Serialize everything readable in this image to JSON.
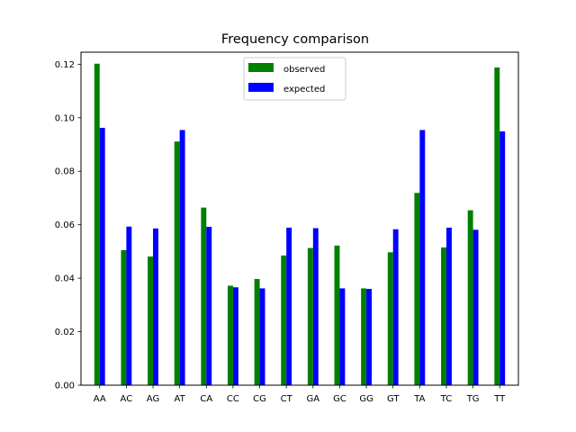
{
  "chart_data": {
    "type": "bar",
    "title": "Frequency comparison",
    "xlabel": "",
    "ylabel": "",
    "categories": [
      "AA",
      "AC",
      "AG",
      "AT",
      "CA",
      "CC",
      "CG",
      "CT",
      "GA",
      "GC",
      "GG",
      "GT",
      "TA",
      "TC",
      "TG",
      "TT"
    ],
    "series": [
      {
        "name": "observed",
        "color": "#008000",
        "values": [
          0.1202,
          0.0505,
          0.0481,
          0.0911,
          0.0664,
          0.0372,
          0.0397,
          0.0485,
          0.0513,
          0.0522,
          0.0362,
          0.0497,
          0.0719,
          0.0515,
          0.0654,
          0.1188
        ]
      },
      {
        "name": "expected",
        "color": "#0000ff",
        "values": [
          0.0962,
          0.0593,
          0.0586,
          0.0954,
          0.0592,
          0.0366,
          0.0362,
          0.0589,
          0.0587,
          0.0362,
          0.036,
          0.0583,
          0.0954,
          0.0589,
          0.0581,
          0.0949
        ]
      }
    ],
    "ylim": [
      0,
      0.1245
    ],
    "yticks": [
      "0.00",
      "0.02",
      "0.04",
      "0.06",
      "0.08",
      "0.10",
      "0.12"
    ],
    "grid": false,
    "legend": "upper center"
  }
}
